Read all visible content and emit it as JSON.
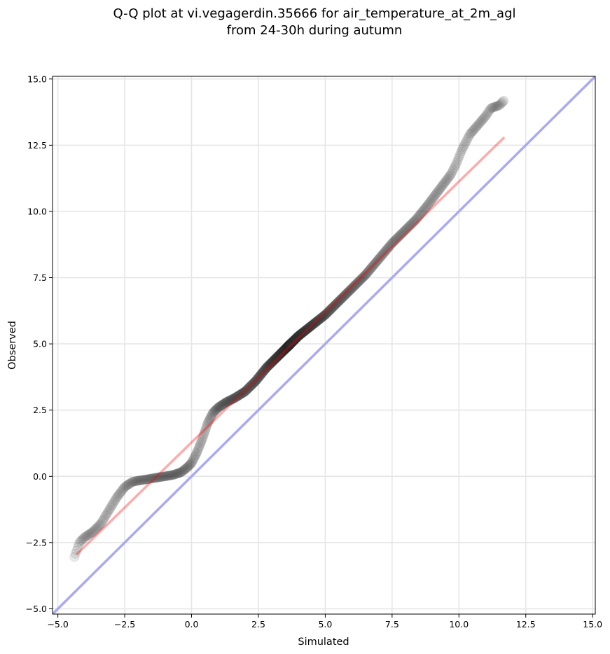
{
  "chart_data": {
    "type": "scatter",
    "title": [
      "Q-Q plot at vi.vegagerdin.35666 for air_temperature_at_2m_agl",
      "from 24-30h during autumn"
    ],
    "xlabel": "Simulated",
    "ylabel": "Observed",
    "xlim": [
      -5.2,
      15.1
    ],
    "ylim": [
      -5.2,
      15.1
    ],
    "xticks": [
      -5.0,
      -2.5,
      0.0,
      2.5,
      5.0,
      7.5,
      10.0,
      12.5,
      15.0
    ],
    "yticks": [
      -5.0,
      -2.5,
      0.0,
      2.5,
      5.0,
      7.5,
      10.0,
      12.5,
      15.0
    ],
    "xtick_labels": [
      "−5.0",
      "−2.5",
      "0.0",
      "2.5",
      "5.0",
      "7.5",
      "10.0",
      "12.5",
      "15.0"
    ],
    "ytick_labels": [
      "−5.0",
      "−2.5",
      "0.0",
      "2.5",
      "5.0",
      "7.5",
      "10.0",
      "12.5",
      "15.0"
    ],
    "grid": true,
    "reference_line": {
      "x": [
        -5.2,
        15.1
      ],
      "y": [
        -5.2,
        15.1
      ],
      "color": "#aaaaf4"
    },
    "fit_line": {
      "x": [
        -4.3,
        11.7
      ],
      "y": [
        -2.95,
        12.8
      ],
      "color": "#f5a3a3"
    },
    "quantile_curve": {
      "x": [
        -4.4,
        -4.2,
        -4.0,
        -3.7,
        -3.4,
        -3.1,
        -2.8,
        -2.5,
        -2.2,
        -1.9,
        -1.6,
        -1.3,
        -1.0,
        -0.7,
        -0.4,
        -0.2,
        0.0,
        0.2,
        0.4,
        0.6,
        0.8,
        1.0,
        1.3,
        1.6,
        2.0,
        2.4,
        2.8,
        3.2,
        3.6,
        4.0,
        4.5,
        5.0,
        5.5,
        6.0,
        6.5,
        7.0,
        7.5,
        8.0,
        8.4,
        8.8,
        9.1,
        9.4,
        9.7,
        9.9,
        10.1,
        10.4,
        11.0,
        11.2,
        11.5,
        11.7
      ],
      "y": [
        -3.1,
        -2.5,
        -2.3,
        -2.1,
        -1.8,
        -1.3,
        -0.8,
        -0.4,
        -0.2,
        -0.15,
        -0.1,
        -0.05,
        0.0,
        0.05,
        0.15,
        0.3,
        0.5,
        0.9,
        1.4,
        2.0,
        2.4,
        2.6,
        2.8,
        2.95,
        3.2,
        3.6,
        4.1,
        4.5,
        4.9,
        5.3,
        5.7,
        6.1,
        6.6,
        7.1,
        7.6,
        8.2,
        8.8,
        9.3,
        9.7,
        10.2,
        10.6,
        11.0,
        11.4,
        11.8,
        12.3,
        12.9,
        13.6,
        13.9,
        14.0,
        14.2
      ]
    }
  }
}
